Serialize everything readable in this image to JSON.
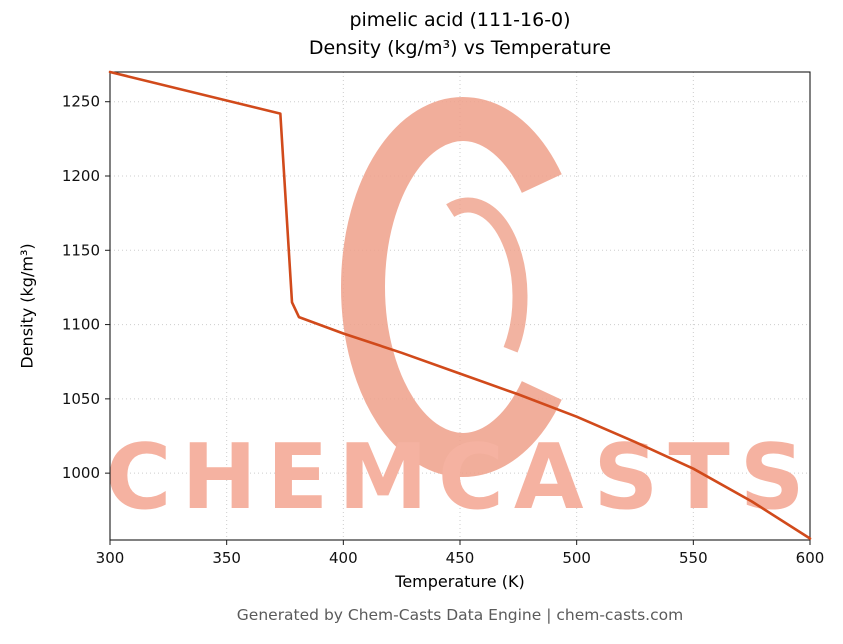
{
  "page": {
    "footer": "Generated by Chem-Casts Data Engine | chem-casts.com"
  },
  "watermark": {
    "text": "CHEMCASTS",
    "text_color": "#f5b2a1",
    "logo_color": "#efa089"
  },
  "chart_data": {
    "type": "line",
    "title": "pimelic acid (111-16-0)",
    "subtitle": "Density (kg/m³) vs Temperature",
    "xlabel": "Temperature (K)",
    "ylabel": "Density (kg/m³)",
    "xlim": [
      300,
      600
    ],
    "ylim": [
      955,
      1270
    ],
    "xticks": [
      300,
      350,
      400,
      450,
      500,
      550,
      600
    ],
    "yticks": [
      1000,
      1050,
      1100,
      1150,
      1200,
      1250
    ],
    "grid": true,
    "legend": "none",
    "line_color": "#d14a1b",
    "line_width": 2.6,
    "series": [
      {
        "name": "density",
        "x": [
          300,
          373,
          378,
          381,
          400,
          425,
          450,
          475,
          500,
          525,
          550,
          575,
          600
        ],
        "y": [
          1270,
          1242,
          1115,
          1105,
          1094,
          1081,
          1067,
          1053,
          1038,
          1021,
          1003,
          981,
          956
        ]
      }
    ]
  }
}
